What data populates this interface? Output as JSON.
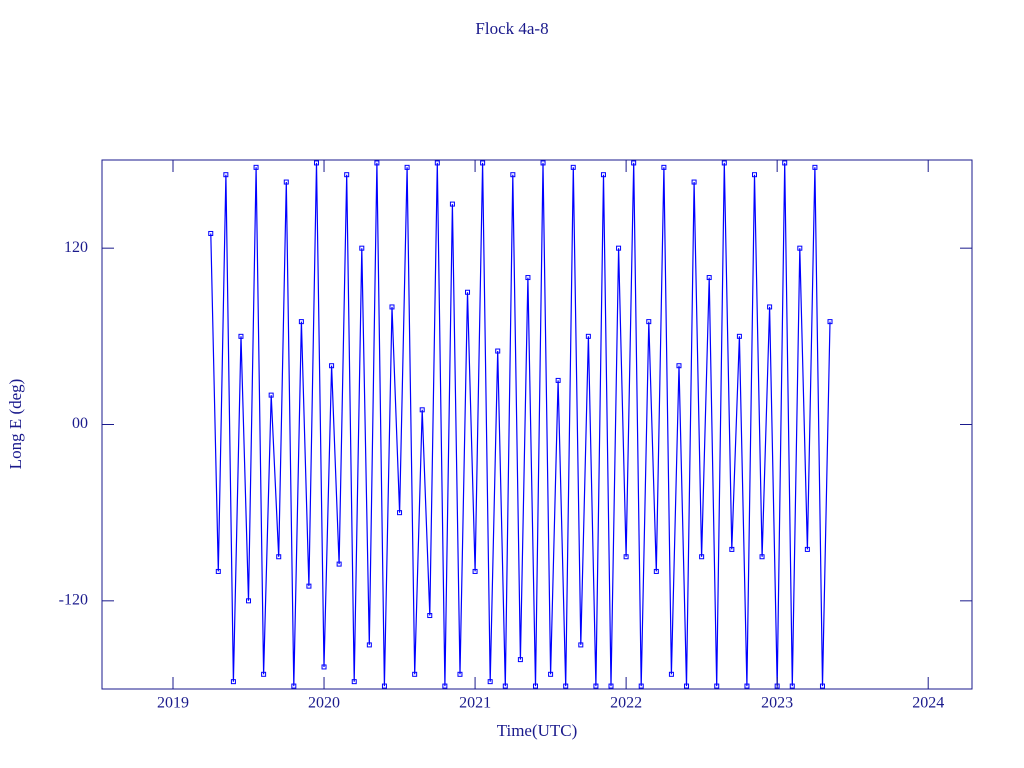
{
  "chart_data": {
    "type": "line",
    "title": "Flock 4a-8",
    "x_label": "Time(UTC)",
    "y_label": "Long E (deg)",
    "xlim": [
      2018.53,
      2024.29
    ],
    "xticks": [
      2019,
      2020,
      2021,
      2022,
      2023,
      2024
    ],
    "ylim": [
      -180,
      180
    ],
    "yticks": [
      -120,
      {
        "value": 0,
        "label": "00"
      },
      120
    ],
    "axis_color": "#1a1a8c",
    "series": [
      {
        "color": "#0000ff",
        "x": [
          2019.25,
          2019.3,
          2019.35,
          2019.4,
          2019.45,
          2019.5,
          2019.55,
          2019.6,
          2019.65,
          2019.7,
          2019.75,
          2019.8,
          2019.85,
          2019.9,
          2019.95,
          2020.0,
          2020.05,
          2020.1,
          2020.15,
          2020.2,
          2020.25,
          2020.3,
          2020.35,
          2020.4,
          2020.45,
          2020.5,
          2020.55,
          2020.6,
          2020.65,
          2020.7,
          2020.75,
          2020.8,
          2020.85,
          2020.9,
          2020.95,
          2021.0,
          2021.05,
          2021.1,
          2021.15,
          2021.2,
          2021.25,
          2021.3,
          2021.35,
          2021.4,
          2021.45,
          2021.5,
          2021.55,
          2021.6,
          2021.65,
          2021.7,
          2021.75,
          2021.8,
          2021.85,
          2021.9,
          2021.95,
          2022.0,
          2022.05,
          2022.1,
          2022.15,
          2022.2,
          2022.25,
          2022.3,
          2022.35,
          2022.4,
          2022.45,
          2022.5,
          2022.55,
          2022.6,
          2022.65,
          2022.7,
          2022.75,
          2022.8,
          2022.85,
          2022.9,
          2022.95,
          2023.0,
          2023.05,
          2023.1,
          2023.15,
          2023.2,
          2023.25,
          2023.3,
          2023.35
        ],
        "values": [
          130,
          -100,
          170,
          -175,
          60,
          -120,
          175,
          -170,
          20,
          -90,
          165,
          -178,
          70,
          -110,
          178,
          -165,
          40,
          -95,
          170,
          -175,
          120,
          -150,
          178,
          -178,
          80,
          -60,
          175,
          -170,
          10,
          -130,
          178,
          -178,
          150,
          -170,
          90,
          -100,
          178,
          -175,
          50,
          -178,
          170,
          -160,
          100,
          -178,
          178,
          -170,
          30,
          -178,
          175,
          -150,
          60,
          -178,
          170,
          -178,
          120,
          -90,
          178,
          -178,
          70,
          -100,
          175,
          -170,
          40,
          -178,
          165,
          -90,
          100,
          -178,
          178,
          -85,
          60,
          -178,
          170,
          -90,
          80,
          -178,
          178,
          -178,
          120,
          -85,
          175,
          -178,
          70
        ]
      }
    ]
  }
}
